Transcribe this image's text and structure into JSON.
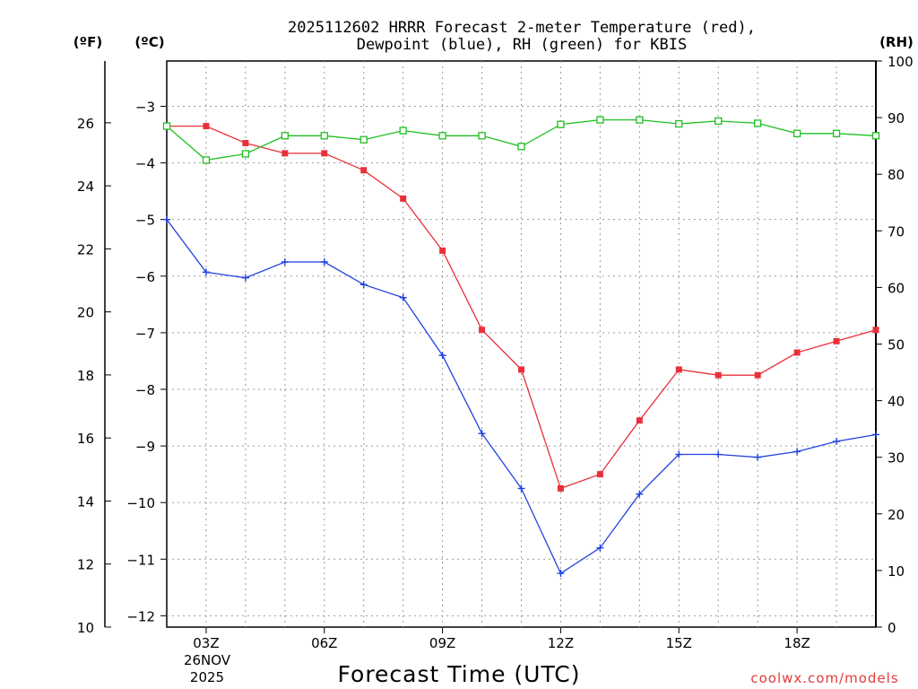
{
  "chart_data": {
    "type": "line",
    "title_line1": "2025112602 HRRR Forecast 2-meter Temperature (red),",
    "title_line2": "Dewpoint (blue), RH (green) for KBIS",
    "xlabel": "Forecast Time (UTC)",
    "credit": "coolwx.com/models",
    "units": {
      "fahrenheit": "(ºF)",
      "celsius": "(ºC)",
      "rh": "(RH)"
    },
    "date_label": {
      "day": "26NOV",
      "year": "2025"
    },
    "x_hours": [
      2,
      3,
      4,
      5,
      6,
      7,
      8,
      9,
      10,
      11,
      12,
      13,
      14,
      15,
      16,
      17,
      18,
      19,
      20
    ],
    "xlim": [
      2,
      20
    ],
    "x_ticks": [
      {
        "hour": 3,
        "label": "03Z"
      },
      {
        "hour": 6,
        "label": "06Z"
      },
      {
        "hour": 9,
        "label": "09Z"
      },
      {
        "hour": 12,
        "label": "12Z"
      },
      {
        "hour": 15,
        "label": "15Z"
      },
      {
        "hour": 18,
        "label": "18Z"
      }
    ],
    "celsius_axis": {
      "range": [
        -12.2,
        -2.2
      ],
      "ticks": [
        -3,
        -4,
        -5,
        -6,
        -7,
        -8,
        -9,
        -10,
        -11,
        -12
      ]
    },
    "fahrenheit_axis": {
      "range": [
        10,
        27.96
      ],
      "ticks": [
        10,
        12,
        14,
        16,
        18,
        20,
        22,
        24,
        26
      ]
    },
    "rh_axis": {
      "range": [
        0,
        100
      ],
      "ticks": [
        0,
        10,
        20,
        30,
        40,
        50,
        60,
        70,
        80,
        90,
        100
      ]
    },
    "series": [
      {
        "name": "Temperature",
        "color": "#e8303a",
        "axis": "celsius",
        "marker": "filled-square",
        "values": [
          -3.35,
          -3.35,
          -3.65,
          -3.83,
          -3.83,
          -4.13,
          -4.63,
          -5.55,
          -6.95,
          -7.65,
          -9.75,
          -9.5,
          -8.55,
          -7.65,
          -7.75,
          -7.75,
          -7.35,
          -7.15,
          -6.95
        ]
      },
      {
        "name": "Dewpoint",
        "color": "#2040e0",
        "axis": "celsius",
        "marker": "plus",
        "values": [
          -5.0,
          -5.93,
          -6.03,
          -5.75,
          -5.75,
          -6.15,
          -6.38,
          -7.4,
          -8.78,
          -9.75,
          -11.25,
          -10.8,
          -9.85,
          -9.15,
          -9.15,
          -9.2,
          -9.1,
          -8.92,
          -8.8
        ]
      },
      {
        "name": "RH",
        "color": "#20c020",
        "axis": "rh",
        "marker": "open-square",
        "values": [
          88.5,
          82.5,
          83.6,
          86.8,
          86.8,
          86.1,
          87.7,
          86.8,
          86.8,
          84.9,
          88.8,
          89.6,
          89.6,
          88.9,
          89.4,
          89.0,
          87.2,
          87.2,
          86.8
        ]
      }
    ]
  }
}
